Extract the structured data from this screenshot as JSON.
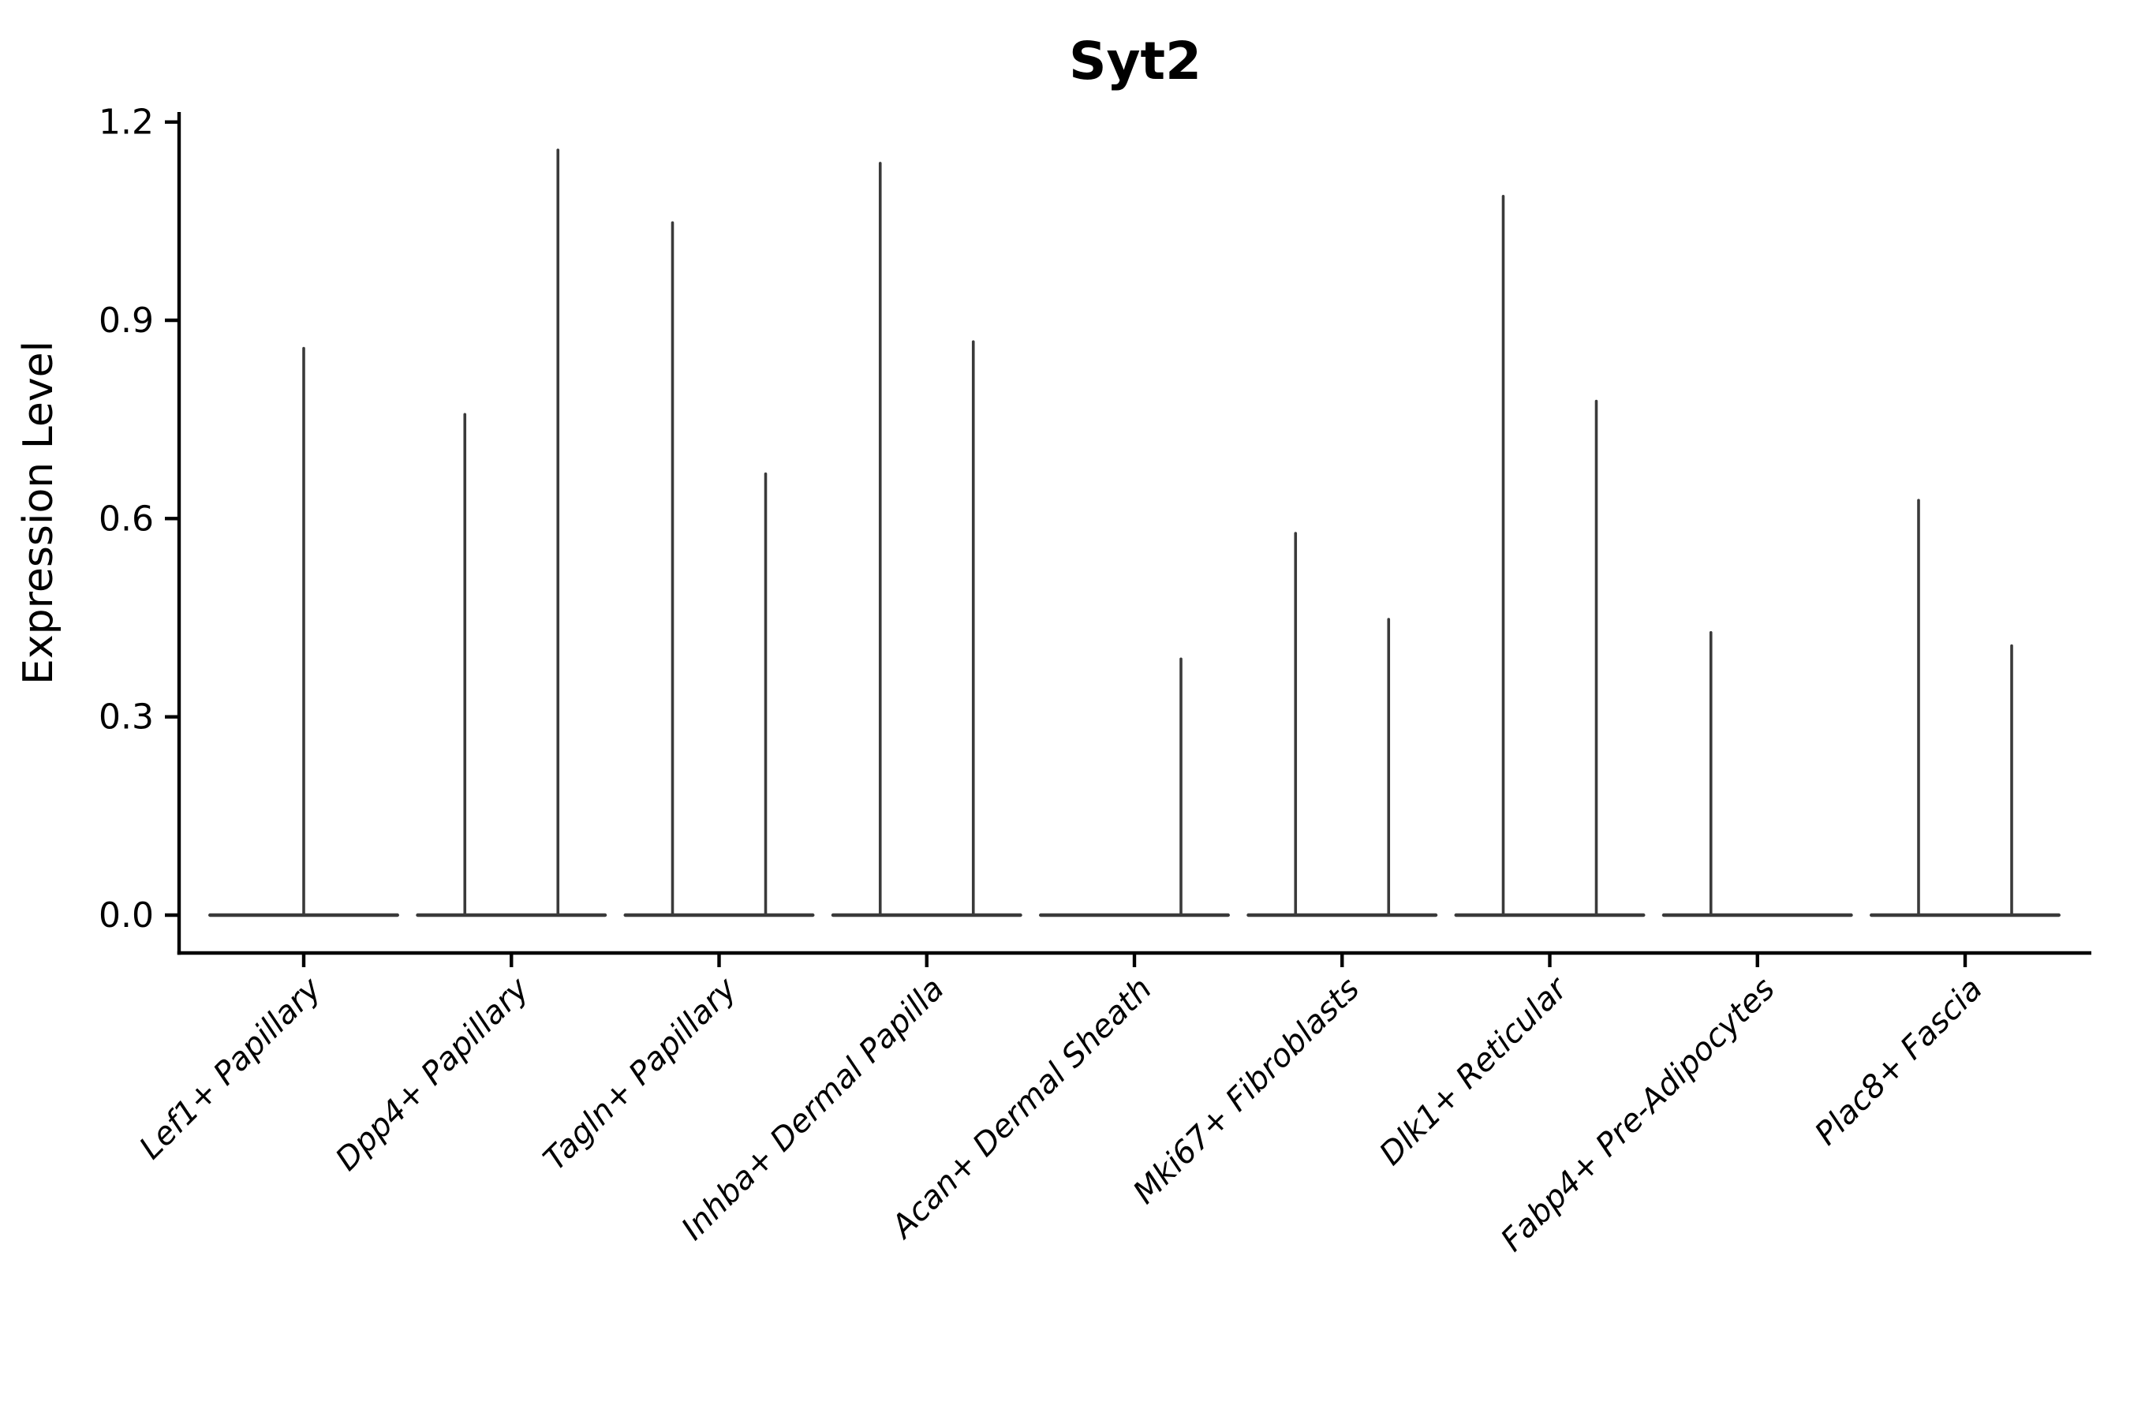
{
  "figure": {
    "background": "#ffffff"
  },
  "chart_data": {
    "type": "violin",
    "title": "Syt2",
    "ylabel": "Expression Level",
    "xlabel": "",
    "ylim": [
      0,
      1.2
    ],
    "grid": false,
    "legend": null,
    "yticks": [
      {
        "label": "0.0",
        "value": 0.0
      },
      {
        "label": "0.3",
        "value": 0.3
      },
      {
        "label": "0.6",
        "value": 0.6
      },
      {
        "label": "0.9",
        "value": 0.9
      },
      {
        "label": "1.2",
        "value": 1.2
      }
    ],
    "style": {
      "violin_color": "#3a3a3a",
      "axis_color": "#000000",
      "background": "#ffffff",
      "x_labels_rotation_deg": 45,
      "x_labels_italic": true,
      "violins_dodged": true
    },
    "categories": [
      {
        "label": "Lef1+ Papillary",
        "violins": [
          {
            "position": "full",
            "max": 0.86
          }
        ]
      },
      {
        "label": "Dpp4+ Papillary",
        "violins": [
          {
            "position": "left",
            "max": 0.76
          },
          {
            "position": "right",
            "max": 1.16
          }
        ]
      },
      {
        "label": "Tagln+ Papillary",
        "violins": [
          {
            "position": "left",
            "max": 1.05
          },
          {
            "position": "right",
            "max": 0.67
          }
        ]
      },
      {
        "label": "Inhba+ Dermal Papilla",
        "violins": [
          {
            "position": "left",
            "max": 1.14
          },
          {
            "position": "right",
            "max": 0.87
          }
        ]
      },
      {
        "label": "Acan+ Dermal Sheath",
        "violins": [
          {
            "position": "left",
            "max": 0.0
          },
          {
            "position": "right",
            "max": 0.39
          }
        ]
      },
      {
        "label": "Mki67+ Fibroblasts",
        "violins": [
          {
            "position": "left",
            "max": 0.58
          },
          {
            "position": "right",
            "max": 0.45
          }
        ]
      },
      {
        "label": "Dlk1+ Reticular",
        "violins": [
          {
            "position": "left",
            "max": 1.09
          },
          {
            "position": "right",
            "max": 0.78
          }
        ]
      },
      {
        "label": "Fabp4+ Pre-Adipocytes",
        "violins": [
          {
            "position": "left",
            "max": 0.43
          },
          {
            "position": "right",
            "max": 0.0
          }
        ]
      },
      {
        "label": "Plac8+ Fascia",
        "violins": [
          {
            "position": "left",
            "max": 0.63
          },
          {
            "position": "right",
            "max": 0.41
          }
        ]
      }
    ]
  }
}
